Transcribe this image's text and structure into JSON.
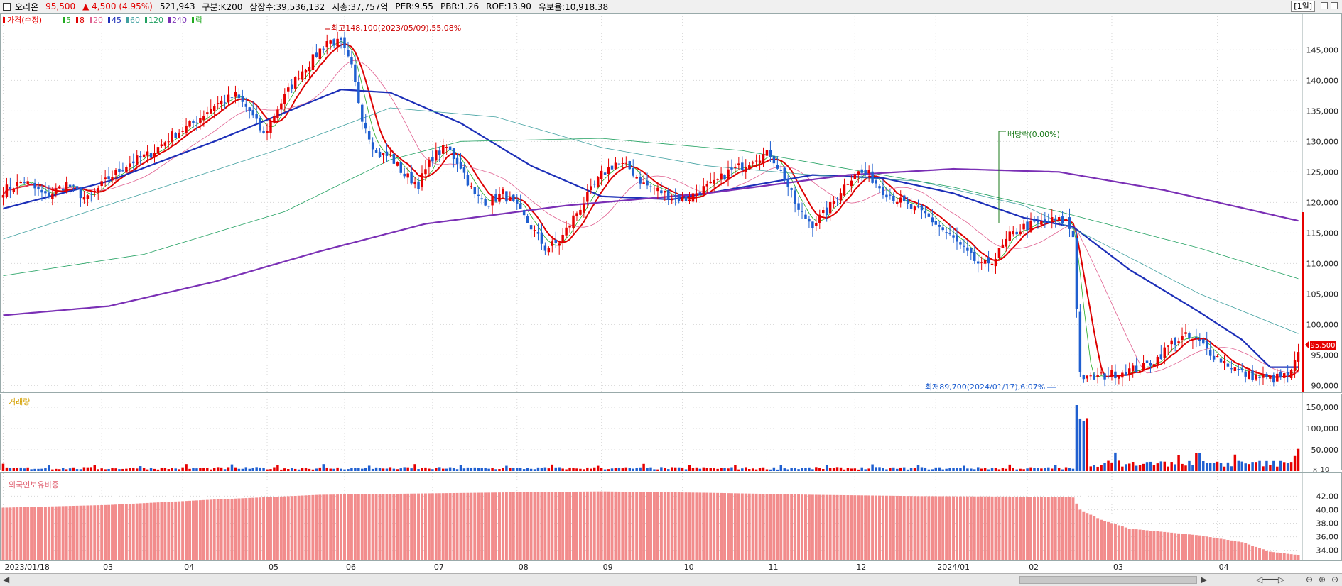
{
  "header": {
    "stock_name": "오리온",
    "price": "95,500",
    "change": "▲ 4,500 (4.95%)",
    "volume": "521,943",
    "market": "구분:K200",
    "shares": "상장수:39,536,132",
    "market_cap": "시총:37,757억",
    "per": "PER:9.55",
    "pbr": "PBR:1.26",
    "roe": "ROE:13.90",
    "float": "유보율:10,918.38",
    "period": "[1일]"
  },
  "legend": {
    "price_label": "가격(수정)",
    "ma": [
      {
        "label": "5",
        "color": "#22aa22"
      },
      {
        "label": "8",
        "color": "#dd0000"
      },
      {
        "label": "20",
        "color": "#e06090"
      },
      {
        "label": "45",
        "color": "#1c2fb8"
      },
      {
        "label": "60",
        "color": "#40a0a0"
      },
      {
        "label": "120",
        "color": "#20a060"
      },
      {
        "label": "240",
        "color": "#7a2fb5"
      }
    ],
    "ex_label": "락"
  },
  "colors": {
    "up": "#e60000",
    "down": "#1f5fd0",
    "foreign": "#f28c8c",
    "grid": "#d8d8d8"
  },
  "annotations": {
    "high": "최고148,100(2023/05/09),55.08%",
    "low": "최저89,700(2024/01/17),6.07%",
    "dividend": "배당락(0.00%)",
    "current_price": "95,500",
    "current_change": "4.95%"
  },
  "volume_panel": {
    "label": "거래량",
    "unit": "× 10",
    "ticks": [
      "150,000",
      "100,000",
      "50,000"
    ]
  },
  "foreign_panel": {
    "label": "외국인보유비중",
    "ticks": [
      "42.00",
      "40.00",
      "38.00",
      "36.00",
      "34.00"
    ]
  },
  "chart_data": {
    "type": "candlestick",
    "x_tick_labels": [
      "2023/01/18",
      "03",
      "04",
      "05",
      "06",
      "07",
      "08",
      "09",
      "10",
      "11",
      "12",
      "2024/01",
      "02",
      "03",
      "04"
    ],
    "price_axis": {
      "ticks": [
        145000,
        140000,
        135000,
        130000,
        125000,
        120000,
        115000,
        110000,
        105000,
        100000,
        95000,
        90000
      ],
      "range": [
        89000,
        150500
      ]
    },
    "price_anchors": [
      [
        0,
        122000
      ],
      [
        6,
        123500
      ],
      [
        12,
        121000
      ],
      [
        18,
        123000
      ],
      [
        24,
        120500
      ],
      [
        30,
        124000
      ],
      [
        36,
        126500
      ],
      [
        42,
        128000
      ],
      [
        48,
        131000
      ],
      [
        54,
        133000
      ],
      [
        60,
        136000
      ],
      [
        66,
        137500
      ],
      [
        70,
        135000
      ],
      [
        74,
        131000
      ],
      [
        78,
        135500
      ],
      [
        84,
        141000
      ],
      [
        88,
        143500
      ],
      [
        92,
        146500
      ],
      [
        96,
        146000
      ],
      [
        99,
        142000
      ],
      [
        102,
        134000
      ],
      [
        106,
        128000
      ],
      [
        110,
        127500
      ],
      [
        114,
        124500
      ],
      [
        118,
        123000
      ],
      [
        122,
        127500
      ],
      [
        126,
        129000
      ],
      [
        130,
        126000
      ],
      [
        134,
        121000
      ],
      [
        138,
        120000
      ],
      [
        142,
        121500
      ],
      [
        146,
        119000
      ],
      [
        150,
        116000
      ],
      [
        154,
        112500
      ],
      [
        158,
        113500
      ],
      [
        162,
        117500
      ],
      [
        166,
        121000
      ],
      [
        170,
        124500
      ],
      [
        174,
        126500
      ],
      [
        178,
        125500
      ],
      [
        182,
        123000
      ],
      [
        186,
        122000
      ],
      [
        190,
        121000
      ],
      [
        194,
        120500
      ],
      [
        198,
        122000
      ],
      [
        202,
        123000
      ],
      [
        206,
        125000
      ],
      [
        210,
        126000
      ],
      [
        214,
        127500
      ],
      [
        218,
        128000
      ],
      [
        222,
        124000
      ],
      [
        226,
        118500
      ],
      [
        230,
        116500
      ],
      [
        234,
        118500
      ],
      [
        238,
        122000
      ],
      [
        242,
        125000
      ],
      [
        246,
        124500
      ],
      [
        250,
        122000
      ],
      [
        254,
        120500
      ],
      [
        258,
        119000
      ],
      [
        262,
        118000
      ],
      [
        266,
        116000
      ],
      [
        270,
        114000
      ],
      [
        274,
        111500
      ],
      [
        278,
        109500
      ],
      [
        282,
        111000
      ],
      [
        286,
        114500
      ],
      [
        290,
        116000
      ],
      [
        294,
        116500
      ],
      [
        298,
        117000
      ],
      [
        302,
        117000
      ],
      [
        304,
        114500
      ],
      [
        305,
        103000
      ],
      [
        306,
        92000
      ],
      [
        308,
        91000
      ],
      [
        312,
        91500
      ],
      [
        316,
        92000
      ],
      [
        320,
        92500
      ],
      [
        324,
        93000
      ],
      [
        328,
        94500
      ],
      [
        332,
        97000
      ],
      [
        336,
        98000
      ],
      [
        340,
        97000
      ],
      [
        344,
        95000
      ],
      [
        348,
        93500
      ],
      [
        352,
        92000
      ],
      [
        356,
        91500
      ],
      [
        360,
        91000
      ],
      [
        364,
        91500
      ],
      [
        366,
        92000
      ],
      [
        368,
        95500
      ]
    ],
    "ma_anchors": {
      "45": [
        [
          0,
          119000
        ],
        [
          30,
          123500
        ],
        [
          60,
          130000
        ],
        [
          96,
          138500
        ],
        [
          110,
          138000
        ],
        [
          130,
          133000
        ],
        [
          150,
          126000
        ],
        [
          170,
          121000
        ],
        [
          190,
          120500
        ],
        [
          210,
          122500
        ],
        [
          230,
          124500
        ],
        [
          250,
          124000
        ],
        [
          270,
          121500
        ],
        [
          290,
          117500
        ],
        [
          304,
          116000
        ],
        [
          320,
          109000
        ],
        [
          340,
          102000
        ],
        [
          352,
          97500
        ],
        [
          360,
          93000
        ],
        [
          368,
          93000
        ]
      ],
      "60": [
        [
          0,
          114000
        ],
        [
          40,
          121500
        ],
        [
          80,
          129000
        ],
        [
          110,
          135500
        ],
        [
          140,
          134000
        ],
        [
          170,
          129000
        ],
        [
          200,
          126000
        ],
        [
          230,
          124500
        ],
        [
          260,
          123500
        ],
        [
          290,
          119500
        ],
        [
          310,
          114000
        ],
        [
          340,
          105000
        ],
        [
          368,
          98500
        ]
      ],
      "120": [
        [
          0,
          108000
        ],
        [
          40,
          111500
        ],
        [
          80,
          118500
        ],
        [
          110,
          127000
        ],
        [
          130,
          130000
        ],
        [
          170,
          130500
        ],
        [
          210,
          128500
        ],
        [
          240,
          125500
        ],
        [
          270,
          122500
        ],
        [
          300,
          118500
        ],
        [
          340,
          112500
        ],
        [
          368,
          107500
        ]
      ],
      "240": [
        [
          0,
          101500
        ],
        [
          30,
          103000
        ],
        [
          60,
          107000
        ],
        [
          90,
          112000
        ],
        [
          120,
          116500
        ],
        [
          160,
          119500
        ],
        [
          200,
          121500
        ],
        [
          240,
          124500
        ],
        [
          270,
          125500
        ],
        [
          300,
          125000
        ],
        [
          330,
          122000
        ],
        [
          368,
          117000
        ]
      ]
    },
    "volume_axis": {
      "range": [
        0,
        160000
      ]
    },
    "volume_spike": {
      "index": 305,
      "value": 155000
    },
    "foreign_axis": {
      "range": [
        32.5,
        43.5
      ]
    },
    "foreign_anchors": [
      [
        0,
        40.3
      ],
      [
        30,
        40.7
      ],
      [
        60,
        41.5
      ],
      [
        90,
        42.2
      ],
      [
        120,
        42.4
      ],
      [
        150,
        42.6
      ],
      [
        170,
        42.7
      ],
      [
        200,
        42.5
      ],
      [
        230,
        42.2
      ],
      [
        260,
        42.0
      ],
      [
        300,
        41.9
      ],
      [
        304,
        41.8
      ],
      [
        306,
        40.0
      ],
      [
        312,
        38.5
      ],
      [
        320,
        37.2
      ],
      [
        340,
        36.2
      ],
      [
        352,
        35.2
      ],
      [
        360,
        33.8
      ],
      [
        368,
        33.3
      ]
    ],
    "last_bar": {
      "price": 95500,
      "change_pct": 4.95,
      "volume": 521943
    }
  }
}
